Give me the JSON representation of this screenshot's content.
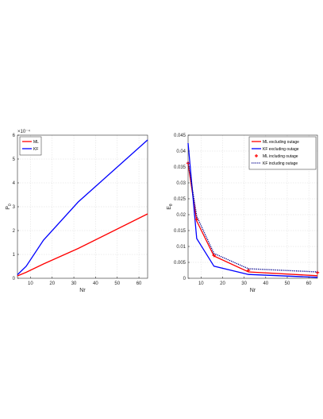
{
  "chart_data": [
    {
      "type": "line",
      "xlabel": "Nr",
      "ylabel": "P_0",
      "exponent_label": "×10⁻⁴",
      "xlim": [
        4,
        64
      ],
      "ylim": [
        0,
        6
      ],
      "xticks": [
        10,
        20,
        30,
        40,
        50,
        60
      ],
      "yticks": [
        0,
        1,
        2,
        3,
        4,
        5,
        6
      ],
      "grid": true,
      "legend_position": "top-left",
      "series": [
        {
          "name": "ML",
          "color": "#ff0000",
          "style": "solid",
          "x": [
            4,
            8,
            16,
            32,
            64
          ],
          "y": [
            0.1,
            0.25,
            0.6,
            1.25,
            2.7
          ]
        },
        {
          "name": "KF",
          "color": "#0000ff",
          "style": "solid",
          "x": [
            4,
            8,
            16,
            32,
            64
          ],
          "y": [
            0.15,
            0.5,
            1.6,
            3.2,
            5.8
          ]
        }
      ]
    },
    {
      "type": "line",
      "xlabel": "Nr",
      "ylabel": "E_θ",
      "xlim": [
        4,
        64
      ],
      "ylim": [
        0,
        0.045
      ],
      "xticks": [
        10,
        20,
        30,
        40,
        50,
        60
      ],
      "yticks": [
        0,
        0.005,
        0.01,
        0.015,
        0.02,
        0.025,
        0.03,
        0.035,
        0.04,
        0.045
      ],
      "ytick_labels": [
        "0",
        "0.005",
        "0.01",
        "0.015",
        "0.02",
        "0.025",
        "0.03",
        "0.035",
        "0.04",
        "0.045"
      ],
      "grid": true,
      "legend_position": "top-right",
      "series": [
        {
          "name": "ML excluding outage",
          "color": "#ff0000",
          "style": "solid",
          "x": [
            4,
            8,
            16,
            32,
            64
          ],
          "y": [
            0.036,
            0.018,
            0.007,
            0.002,
            0.0008
          ]
        },
        {
          "name": "KF excluding outage",
          "color": "#0000ff",
          "style": "solid",
          "x": [
            4,
            8,
            16,
            32,
            64
          ],
          "y": [
            0.0425,
            0.0125,
            0.0038,
            0.0012,
            0.0003
          ]
        },
        {
          "name": "ML including outage",
          "color": "#ff0000",
          "style": "marker",
          "x": [
            4,
            8,
            16,
            32,
            64
          ],
          "y": [
            0.0362,
            0.0185,
            0.0072,
            0.0025,
            0.0018
          ]
        },
        {
          "name": "KF including outage",
          "color": "#00008b",
          "style": "dotted",
          "x": [
            4,
            8,
            16,
            32,
            64
          ],
          "y": [
            0.0365,
            0.0195,
            0.0078,
            0.003,
            0.002
          ]
        }
      ]
    }
  ]
}
